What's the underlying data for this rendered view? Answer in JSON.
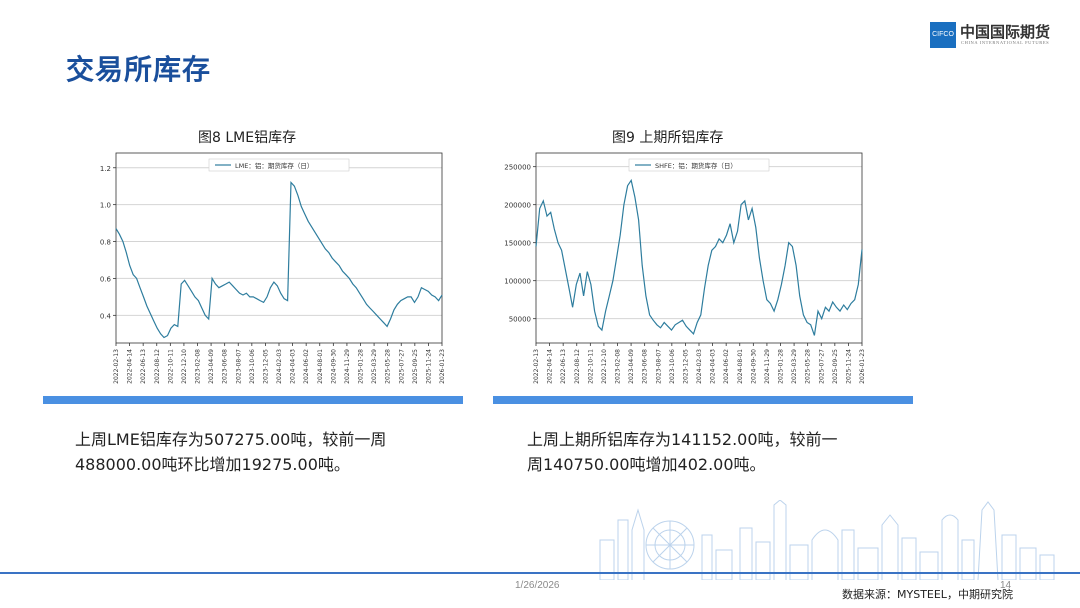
{
  "slide": {
    "title": "交易所库存",
    "date": "1/26/2026",
    "page": "14",
    "source": "数据来源：MYSTEEL，中期研究院"
  },
  "logo": {
    "text": "CIFCO",
    "name_cn": "中国国际期货",
    "name_en": "CHINA INTERNATIONAL FUTURES"
  },
  "colors": {
    "accent": "#1a4f9c",
    "bar": "#4a90e2",
    "line": "#2e7d9e",
    "footer": "#3a73c4"
  },
  "descriptions": {
    "lme_line1": "上周LME铝库存为507275.00吨，较前一周",
    "lme_line2": "488000.00吨环比增加19275.00吨。",
    "shfe_line1": "上周上期所铝库存为141152.00吨，较前一",
    "shfe_line2": "周140750.00吨增加402.00吨。"
  },
  "chart_data": [
    {
      "type": "line",
      "title": "图8  LME铝库存",
      "series": [
        {
          "name": "LME：铝：期货库存（日）",
          "values": [
            0.87,
            0.84,
            0.8,
            0.74,
            0.67,
            0.62,
            0.6,
            0.55,
            0.5,
            0.45,
            0.41,
            0.37,
            0.33,
            0.3,
            0.28,
            0.29,
            0.33,
            0.35,
            0.34,
            0.57,
            0.59,
            0.56,
            0.53,
            0.5,
            0.48,
            0.44,
            0.4,
            0.38,
            0.6,
            0.57,
            0.55,
            0.56,
            0.57,
            0.58,
            0.56,
            0.54,
            0.52,
            0.51,
            0.52,
            0.5,
            0.5,
            0.49,
            0.48,
            0.47,
            0.5,
            0.55,
            0.58,
            0.56,
            0.52,
            0.49,
            0.48,
            1.12,
            1.1,
            1.05,
            0.99,
            0.95,
            0.91,
            0.88,
            0.85,
            0.82,
            0.79,
            0.76,
            0.74,
            0.71,
            0.69,
            0.67,
            0.64,
            0.62,
            0.6,
            0.57,
            0.55,
            0.52,
            0.49,
            0.46,
            0.44,
            0.42,
            0.4,
            0.38,
            0.36,
            0.34,
            0.38,
            0.43,
            0.46,
            0.48,
            0.49,
            0.5,
            0.5,
            0.47,
            0.5,
            0.55,
            0.54,
            0.53,
            0.51,
            0.5,
            0.48,
            0.51
          ]
        }
      ],
      "x_ticks": [
        "2022-02-13",
        "2022-04-14",
        "2022-06-13",
        "2022-08-12",
        "2022-10-11",
        "2022-12-10",
        "2023-02-08",
        "2023-04-09",
        "2023-06-08",
        "2023-08-07",
        "2023-10-06",
        "2023-12-05",
        "2024-02-03",
        "2024-04-03",
        "2024-06-02",
        "2024-08-01",
        "2024-09-30",
        "2024-11-29",
        "2025-01-28",
        "2025-03-29",
        "2025-05-28",
        "2025-07-27",
        "2025-09-25",
        "2025-11-24",
        "2026-01-23"
      ],
      "y_ticks": [
        "0.4",
        "0.6",
        "0.8",
        "1.0",
        "1.2"
      ],
      "ylim": [
        0.25,
        1.28
      ],
      "grid": true,
      "legend": "top-center"
    },
    {
      "type": "line",
      "title": "图9  上期所铝库存",
      "series": [
        {
          "name": "SHFE：铝：期货库存（日）",
          "values": [
            145000,
            195000,
            205000,
            185000,
            190000,
            168000,
            150000,
            140000,
            115000,
            90000,
            65000,
            95000,
            110000,
            80000,
            112000,
            95000,
            60000,
            40000,
            35000,
            60000,
            80000,
            100000,
            130000,
            160000,
            200000,
            225000,
            232000,
            210000,
            180000,
            120000,
            80000,
            55000,
            48000,
            42000,
            38000,
            45000,
            40000,
            35000,
            42000,
            45000,
            48000,
            40000,
            35000,
            30000,
            45000,
            55000,
            90000,
            120000,
            140000,
            145000,
            155000,
            150000,
            160000,
            175000,
            150000,
            165000,
            200000,
            205000,
            180000,
            195000,
            170000,
            130000,
            100000,
            75000,
            70000,
            60000,
            75000,
            95000,
            120000,
            150000,
            145000,
            120000,
            80000,
            55000,
            45000,
            42000,
            28000,
            60000,
            50000,
            65000,
            60000,
            72000,
            65000,
            60000,
            68000,
            62000,
            70000,
            75000,
            95000,
            141152
          ]
        }
      ],
      "x_ticks": [
        "2022-02-13",
        "2022-04-14",
        "2022-06-13",
        "2022-08-12",
        "2022-10-11",
        "2022-12-10",
        "2023-02-08",
        "2023-04-09",
        "2023-06-08",
        "2023-08-07",
        "2023-10-06",
        "2023-12-05",
        "2024-02-03",
        "2024-04-03",
        "2024-06-02",
        "2024-08-01",
        "2024-09-30",
        "2024-11-29",
        "2025-01-28",
        "2025-03-29",
        "2025-05-28",
        "2025-07-27",
        "2025-09-25",
        "2025-11-24",
        "2026-01-23"
      ],
      "y_ticks": [
        "50000",
        "100000",
        "150000",
        "200000",
        "250000"
      ],
      "ylim": [
        18000,
        268000
      ],
      "grid": true,
      "legend": "top-center"
    }
  ]
}
